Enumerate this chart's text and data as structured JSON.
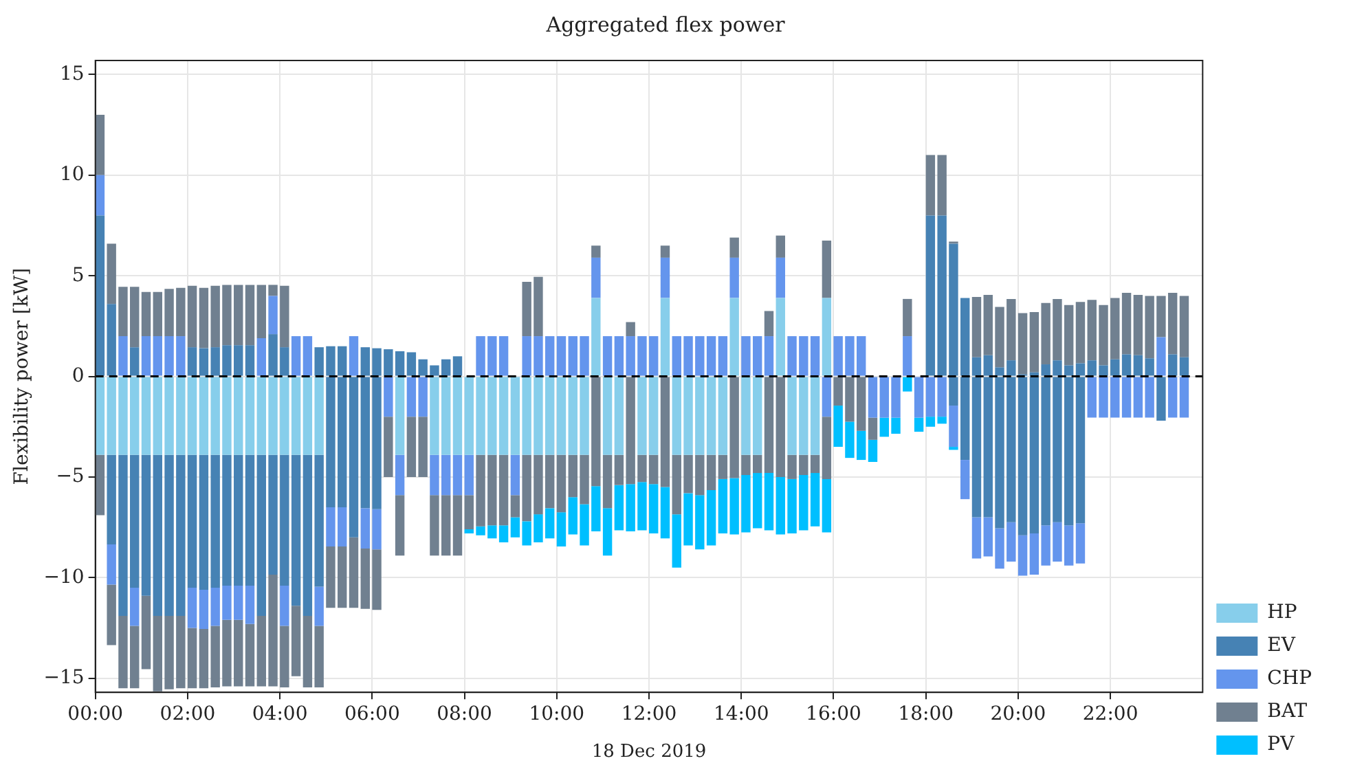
{
  "chart_data": {
    "type": "bar",
    "title": "Aggregated flex power",
    "xlabel": "18 Dec 2019",
    "ylabel": "Flexibility power [kW]",
    "stacked": true,
    "grid": true,
    "legend": "right",
    "x": [
      0,
      0.25,
      0.5,
      0.75,
      1,
      1.25,
      1.5,
      1.75,
      2,
      2.25,
      2.5,
      2.75,
      3,
      3.25,
      3.5,
      3.75,
      4,
      4.25,
      4.5,
      4.75,
      5,
      5.25,
      5.5,
      5.75,
      6,
      6.25,
      6.5,
      6.75,
      7,
      7.25,
      7.5,
      7.75,
      8,
      8.25,
      8.5,
      8.75,
      9,
      9.25,
      9.5,
      9.75,
      10,
      10.25,
      10.5,
      10.75,
      11,
      11.25,
      11.5,
      11.75,
      12,
      12.25,
      12.5,
      12.75,
      13,
      13.25,
      13.5,
      13.75,
      14,
      14.25,
      14.5,
      14.75,
      15,
      15.25,
      15.5,
      15.75,
      16,
      16.25,
      16.5,
      16.75,
      17,
      17.25,
      17.5,
      17.75,
      18,
      18.25,
      18.5,
      18.75,
      19,
      19.25,
      19.5,
      19.75,
      20,
      20.25,
      20.5,
      20.75,
      21,
      21.25,
      21.5,
      21.75,
      22,
      22.25,
      22.5,
      22.75,
      23,
      23.25,
      23.5
    ],
    "xlim": [
      0,
      24
    ],
    "xticks": [
      {
        "value": 0,
        "label": "00:00"
      },
      {
        "value": 2,
        "label": "02:00"
      },
      {
        "value": 4,
        "label": "04:00"
      },
      {
        "value": 6,
        "label": "06:00"
      },
      {
        "value": 8,
        "label": "08:00"
      },
      {
        "value": 10,
        "label": "10:00"
      },
      {
        "value": 12,
        "label": "12:00"
      },
      {
        "value": 14,
        "label": "14:00"
      },
      {
        "value": 16,
        "label": "16:00"
      },
      {
        "value": 18,
        "label": "18:00"
      },
      {
        "value": 20,
        "label": "20:00"
      },
      {
        "value": 22,
        "label": "22:00"
      }
    ],
    "ylim": [
      -15.7,
      15.7
    ],
    "yticks": [
      {
        "value": -15,
        "label": "−15"
      },
      {
        "value": -10,
        "label": "−10"
      },
      {
        "value": -5,
        "label": "−5"
      },
      0,
      5,
      10,
      15
    ],
    "ref_lines": [
      {
        "axis": "y",
        "value": 0,
        "color": "#000000",
        "line_style": "dashed"
      }
    ],
    "series": [
      {
        "name": "HP",
        "color": "#87ceeb",
        "values": [
          null,
          null,
          null,
          null,
          null,
          null,
          null,
          null,
          null,
          null,
          null,
          null,
          null,
          null,
          null,
          null,
          null,
          null,
          null,
          null,
          null,
          null,
          null,
          null,
          null,
          null,
          null,
          null,
          null,
          null,
          null,
          null,
          null,
          null,
          null,
          null,
          null,
          null,
          null,
          null,
          null,
          null,
          null,
          3.9,
          null,
          null,
          null,
          null,
          null,
          3.9,
          null,
          null,
          null,
          null,
          null,
          3.9,
          null,
          null,
          null,
          3.9,
          null,
          null,
          null,
          3.9,
          null,
          null,
          null,
          null,
          null,
          null,
          null,
          null,
          null,
          null,
          null,
          null,
          null,
          null,
          null,
          null,
          null,
          null,
          null,
          null,
          null,
          null,
          null,
          null,
          null,
          null,
          null,
          null,
          null,
          null,
          null
        ]
      },
      {
        "color": "#87ceeb",
        "values": [
          -3.9,
          -3.9,
          -3.9,
          -3.9,
          -3.9,
          -3.9,
          -3.9,
          -3.9,
          -3.9,
          -3.9,
          -3.9,
          -3.9,
          -3.9,
          -3.9,
          -3.9,
          -3.9,
          -3.9,
          -3.9,
          -3.9,
          -3.9,
          null,
          null,
          null,
          null,
          null,
          null,
          -3.9,
          null,
          null,
          -3.9,
          -3.9,
          -3.9,
          -3.9,
          -3.9,
          -3.9,
          -3.9,
          -3.9,
          -3.9,
          -3.9,
          -3.9,
          -3.9,
          -3.9,
          -3.9,
          null,
          -3.9,
          -3.9,
          null,
          -3.9,
          -3.9,
          null,
          -3.9,
          -3.9,
          -3.9,
          -3.9,
          -3.9,
          null,
          -3.9,
          -3.9,
          null,
          null,
          -3.9,
          -3.9,
          -3.9,
          null,
          null,
          null,
          null,
          null,
          null,
          null,
          null,
          null,
          null,
          null,
          null,
          null,
          null,
          null,
          null,
          null,
          null,
          null,
          null,
          null,
          null,
          null,
          null,
          null,
          null,
          null,
          null,
          null,
          null,
          null,
          null
        ]
      },
      {
        "name": "EV",
        "color": "#4682b4",
        "values": [
          8.0,
          3.6,
          null,
          1.45,
          null,
          null,
          null,
          null,
          1.45,
          1.4,
          1.45,
          1.55,
          1.55,
          1.55,
          null,
          2.1,
          1.45,
          null,
          null,
          1.45,
          1.5,
          1.5,
          null,
          1.45,
          1.4,
          1.35,
          1.25,
          1.2,
          0.85,
          0.55,
          0.85,
          1.0,
          null,
          null,
          null,
          null,
          null,
          null,
          null,
          null,
          null,
          null,
          null,
          null,
          null,
          null,
          null,
          null,
          null,
          null,
          null,
          null,
          null,
          null,
          null,
          null,
          null,
          null,
          null,
          null,
          null,
          null,
          null,
          null,
          null,
          null,
          null,
          null,
          null,
          null,
          null,
          null,
          8.0,
          8.0,
          6.6,
          3.9,
          0.95,
          1.05,
          0.45,
          0.8,
          0.1,
          0.2,
          0.6,
          0.8,
          0.55,
          0.65,
          0.8,
          0.55,
          0.85,
          1.1,
          1.05,
          0.9,
          null,
          1.1,
          0.95
        ]
      },
      {
        "color": "#4682b4",
        "values": [
          null,
          -4.45,
          -8.0,
          -6.6,
          -7.0,
          -8.0,
          -8.0,
          -8.0,
          -6.6,
          -6.7,
          -6.6,
          -6.5,
          -6.5,
          -6.5,
          -8.0,
          -5.95,
          -6.5,
          -7.5,
          -8.0,
          -6.55,
          -6.5,
          -6.5,
          -8.0,
          -6.55,
          -6.6,
          null,
          null,
          null,
          null,
          null,
          null,
          null,
          null,
          null,
          null,
          null,
          null,
          null,
          null,
          null,
          null,
          null,
          null,
          null,
          null,
          null,
          null,
          null,
          null,
          null,
          null,
          null,
          null,
          null,
          null,
          null,
          null,
          null,
          null,
          null,
          null,
          null,
          null,
          null,
          null,
          null,
          null,
          null,
          null,
          null,
          null,
          null,
          null,
          null,
          -1.45,
          -4.15,
          -7.0,
          -7.0,
          -7.55,
          -7.25,
          -7.9,
          -7.8,
          -7.4,
          -7.25,
          -7.4,
          -7.3,
          null,
          null,
          null,
          null,
          null,
          null,
          -2.2,
          null,
          null
        ]
      },
      {
        "name": "CHP",
        "color": "#6495ed",
        "values": [
          2.0,
          null,
          2.0,
          null,
          2.0,
          2.0,
          2.0,
          2.0,
          null,
          null,
          null,
          null,
          null,
          null,
          1.9,
          1.9,
          null,
          2.0,
          2.0,
          null,
          null,
          null,
          2.0,
          null,
          null,
          null,
          null,
          null,
          null,
          null,
          null,
          null,
          null,
          2.0,
          2.0,
          2.0,
          null,
          2.0,
          2.0,
          2.0,
          2.0,
          2.0,
          2.0,
          2.0,
          2.0,
          2.0,
          2.0,
          2.0,
          2.0,
          2.0,
          2.0,
          2.0,
          2.0,
          2.0,
          2.0,
          2.0,
          2.0,
          2.0,
          2.0,
          2.0,
          2.0,
          2.0,
          2.0,
          null,
          2.0,
          2.0,
          2.0,
          null,
          null,
          null,
          2.0,
          null,
          null,
          null,
          null,
          null,
          null,
          null,
          null,
          null,
          null,
          null,
          null,
          null,
          null,
          null,
          null,
          null,
          null,
          null,
          null,
          null,
          1.95,
          null,
          null
        ]
      },
      {
        "color": "#6495ed",
        "values": [
          null,
          -2.0,
          null,
          -1.9,
          null,
          null,
          null,
          null,
          -2.0,
          -1.95,
          -1.9,
          -1.7,
          -1.7,
          -1.9,
          null,
          null,
          -2.0,
          null,
          null,
          -1.95,
          -1.95,
          -1.95,
          null,
          -2.0,
          -2.0,
          -2.0,
          -2.0,
          -2.0,
          -2.0,
          -2.0,
          -2.0,
          -2.0,
          -2.0,
          null,
          null,
          null,
          -2.0,
          null,
          null,
          null,
          null,
          null,
          null,
          null,
          null,
          null,
          null,
          null,
          null,
          null,
          null,
          null,
          null,
          null,
          null,
          null,
          null,
          null,
          null,
          null,
          null,
          null,
          null,
          -2.0,
          null,
          null,
          null,
          -2.05,
          -2.05,
          -2.05,
          null,
          -2.05,
          -2.0,
          -2.0,
          -2.05,
          -1.95,
          -2.05,
          -1.95,
          -2.0,
          -1.95,
          -2.0,
          -2.05,
          -2.0,
          -1.95,
          -2.0,
          -2.0,
          -2.05,
          -2.05,
          -2.05,
          -2.05,
          -2.05,
          -2.05,
          null,
          -2.05,
          -2.05
        ]
      },
      {
        "name": "BAT",
        "color": "#708090",
        "values": [
          3.0,
          3.0,
          2.45,
          3.0,
          2.2,
          2.2,
          2.35,
          2.4,
          3.05,
          3.0,
          3.05,
          3.0,
          3.0,
          3.0,
          2.65,
          0.55,
          3.05,
          null,
          null,
          null,
          null,
          null,
          null,
          null,
          null,
          null,
          null,
          null,
          null,
          null,
          null,
          null,
          null,
          null,
          null,
          null,
          null,
          2.7,
          2.95,
          null,
          null,
          null,
          null,
          0.6,
          null,
          null,
          0.7,
          null,
          null,
          0.6,
          null,
          null,
          null,
          null,
          null,
          1.0,
          null,
          null,
          1.25,
          1.1,
          null,
          null,
          null,
          2.85,
          null,
          null,
          null,
          null,
          null,
          null,
          1.85,
          null,
          3.0,
          3.0,
          0.1,
          null,
          3.0,
          3.0,
          3.0,
          3.05,
          3.05,
          3.0,
          3.05,
          3.05,
          3.0,
          3.05,
          3.0,
          3.0,
          3.05,
          3.05,
          3.0,
          3.1,
          2.05,
          3.05,
          3.05
        ]
      },
      {
        "color": "#708090",
        "values": [
          -3.0,
          -3.0,
          -3.6,
          -3.1,
          -3.65,
          -3.75,
          -3.65,
          -3.6,
          -3.0,
          -2.95,
          -3.05,
          -3.3,
          -3.3,
          -3.1,
          -3.5,
          -5.55,
          -3.05,
          -3.5,
          -3.55,
          -3.05,
          -3.05,
          -3.05,
          -3.5,
          -3.0,
          -3.0,
          -3.0,
          -3.0,
          -3.0,
          -3.0,
          -3.0,
          -3.0,
          -3.0,
          -1.7,
          -3.55,
          -3.5,
          -3.5,
          -1.1,
          -3.3,
          -2.95,
          -2.65,
          -2.85,
          -2.1,
          -2.45,
          -5.45,
          -2.65,
          -1.5,
          -5.35,
          -1.35,
          -1.45,
          -5.5,
          -2.95,
          -1.9,
          -2.0,
          -1.75,
          -1.2,
          -5.05,
          -1.0,
          -0.9,
          -4.8,
          -5.0,
          -1.2,
          -1.0,
          -0.9,
          -3.1,
          -1.45,
          -2.25,
          -2.7,
          -1.1,
          null,
          null,
          null,
          null,
          null,
          null,
          null,
          null,
          null,
          null,
          null,
          null,
          null,
          null,
          null,
          null,
          null,
          null,
          null,
          null,
          null,
          null,
          null,
          null,
          null,
          null,
          null
        ]
      },
      {
        "name": "PV",
        "color": "#00bfff",
        "values": [
          null,
          null,
          null,
          null,
          null,
          null,
          null,
          null,
          null,
          null,
          null,
          null,
          null,
          null,
          null,
          null,
          null,
          null,
          null,
          null,
          null,
          null,
          null,
          null,
          null,
          null,
          null,
          null,
          null,
          null,
          null,
          null,
          -0.2,
          -0.45,
          -0.65,
          -0.85,
          -1.0,
          -1.2,
          -1.4,
          -1.5,
          -1.7,
          -1.85,
          -2.05,
          -2.25,
          -2.35,
          -2.25,
          -2.35,
          -2.4,
          -2.45,
          -2.55,
          -2.65,
          -2.6,
          -2.7,
          -2.75,
          -2.7,
          -2.8,
          -2.85,
          -2.75,
          -2.85,
          -2.85,
          -2.7,
          -2.75,
          -2.65,
          -2.65,
          -2.05,
          -1.8,
          -1.45,
          -1.1,
          -0.95,
          -0.8,
          -0.75,
          -0.7,
          -0.5,
          -0.35,
          -0.15,
          null,
          null,
          null,
          null,
          null,
          null,
          null,
          null,
          null,
          null,
          null,
          null,
          null,
          null,
          null,
          null,
          null,
          null,
          null,
          null
        ]
      }
    ]
  }
}
